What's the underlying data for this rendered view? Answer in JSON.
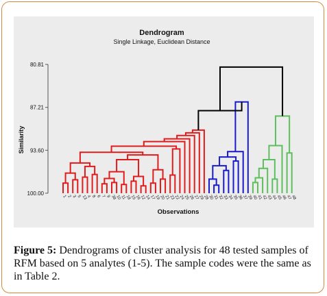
{
  "caption": {
    "label": "Figure 5:",
    "text": " Dendrograms of cluster analysis for 48 tested samples of RFM based on 5 analytes (1-5). The sample codes were the same as in Table 2."
  },
  "chart_data": {
    "type": "dendrogram",
    "title": "Dendrogram",
    "subtitle": "Single Linkage, Euclidean Distance",
    "xlabel": "Observations",
    "ylabel": "Similarity",
    "yticks": [
      "80.81",
      "87.21",
      "93.60",
      "100.00"
    ],
    "ylim": [
      80.81,
      100.0
    ],
    "colors": {
      "red": "#e01b1b",
      "blue": "#1a1acd",
      "green": "#5cbf5c",
      "black": "#000000",
      "axis": "#333333"
    },
    "leaf_labels": [
      "1",
      "2",
      "3",
      "5",
      "13",
      "4",
      "8",
      "6",
      "7",
      "9",
      "38",
      "10",
      "11",
      "18",
      "15",
      "16",
      "12",
      "14",
      "17",
      "19",
      "20",
      "21",
      "23",
      "22",
      "24",
      "25",
      "26",
      "27",
      "29",
      "28",
      "30",
      "31",
      "32",
      "33",
      "34",
      "35",
      "36",
      "37",
      "39",
      "40",
      "41",
      "42",
      "43",
      "44",
      "45",
      "46",
      "47",
      "48"
    ],
    "red_clusters": {
      "values": [
        98.5,
        97.0,
        96.0,
        95.5,
        95.0,
        94.3,
        93.9,
        93.4,
        93.0,
        92.3,
        91.9,
        91.4,
        91.0,
        90.6
      ]
    },
    "blue_cluster": {
      "top": 86.4,
      "values": [
        98.8,
        97.9,
        96.6,
        95.9,
        95.2,
        94.6,
        93.8
      ]
    },
    "green_cluster": {
      "top": 88.5,
      "values": [
        98.4,
        97.7,
        96.3,
        92.9
      ]
    },
    "merges": {
      "red_blue": 87.7,
      "root": 81.2
    }
  }
}
